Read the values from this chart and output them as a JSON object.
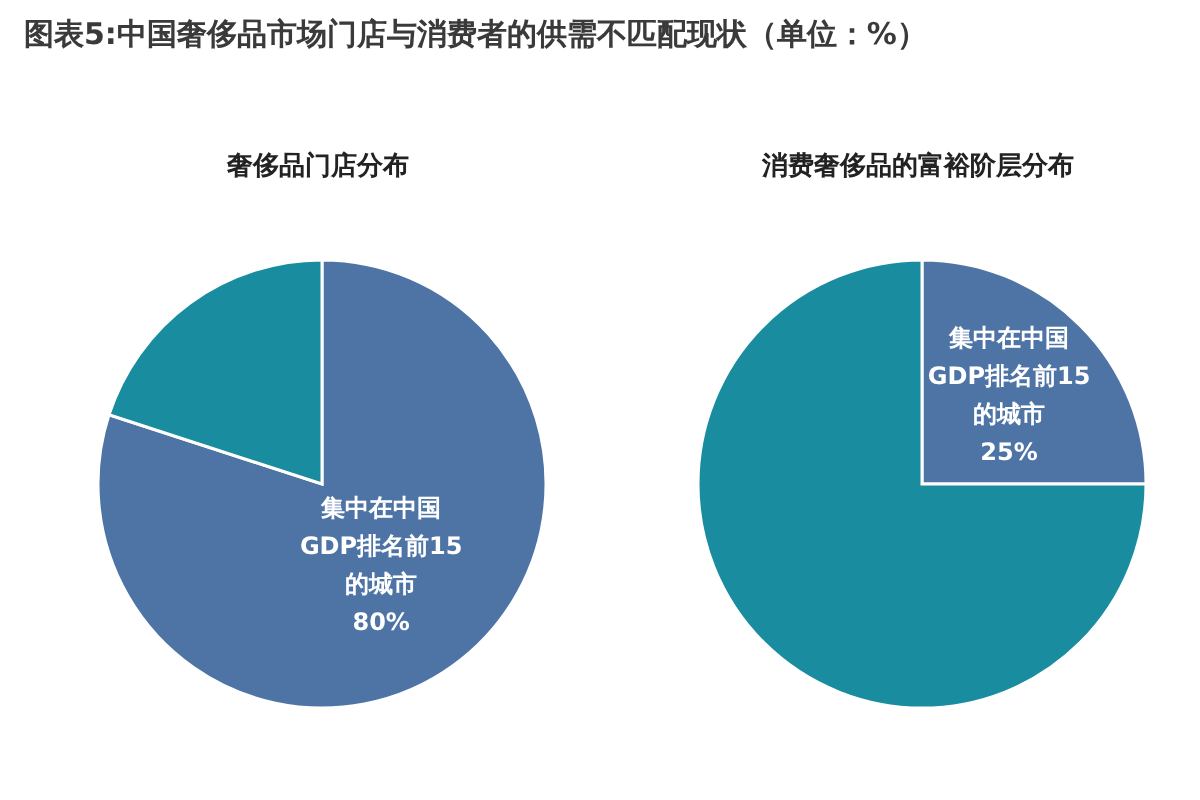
{
  "chart_data": [
    {
      "type": "pie",
      "title": "图表5:中国奢侈品市场门店与消费者的供需不匹配现状（单位：%）",
      "subtitle": "奢侈品门店分布",
      "categories": [
        "集中在中国GDP排名前15的城市",
        null
      ],
      "values": [
        80,
        20
      ],
      "colors": [
        "#4e74a6",
        "#1a8c9f"
      ],
      "value_labels": [
        "80%",
        null
      ]
    },
    {
      "type": "pie",
      "subtitle": "消费奢侈品的富裕阶层分布",
      "categories": [
        "集中在中国GDP排名前15的城市",
        null
      ],
      "values": [
        25,
        75
      ],
      "colors": [
        "#4e74a6",
        "#1a8c9f"
      ],
      "value_labels": [
        "25%",
        null
      ]
    }
  ]
}
